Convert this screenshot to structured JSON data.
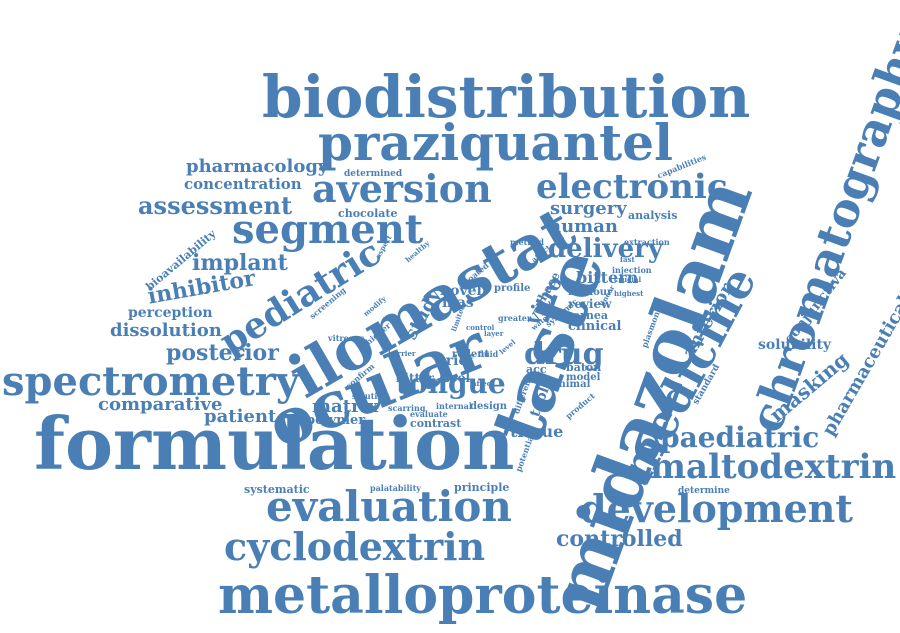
{
  "palette": {
    "text": "#4a7fb5",
    "background": "#ffffff"
  },
  "words": [
    "biodistribution",
    "praziquantel",
    "chromatography",
    "midazolam",
    "formulation",
    "metalloproteinase",
    "taste",
    "ilomastat",
    "ocular",
    "medicine",
    "segment",
    "aversion",
    "electronic",
    "pediatric",
    "spectrometry",
    "evaluation",
    "development",
    "cyclodextrin",
    "maltodextrin",
    "paediatric",
    "drug",
    "delivery",
    "tongue",
    "assessment",
    "posterior",
    "implant",
    "inhibitor",
    "comparative",
    "patient",
    "dissolution",
    "perception",
    "pharmacology",
    "concentration",
    "controlled",
    "masking",
    "pharmaceutical",
    "conjunctiva",
    "solubility",
    "anterior",
    "bittern",
    "surgery",
    "human",
    "matrix",
    "polymer",
    "tissue",
    "clinical",
    "review",
    "cornea",
    "analysis",
    "capabilities",
    "determined",
    "chocolate",
    "bioavailability",
    "systematic",
    "palatability",
    "principle",
    "determine",
    "contrast",
    "vitreous",
    "brief",
    "bitter",
    "novel",
    "mas",
    "study",
    "vitro",
    "table",
    "acc",
    "baton",
    "model",
    "design",
    "tool",
    "rodent",
    "profile",
    "screening",
    "greater",
    "standard",
    "injection",
    "extraction",
    "method",
    "evaluate",
    "internal",
    "scarring",
    "humour",
    "highest",
    "plasmon",
    "systemic",
    "potential",
    "different",
    "product",
    "animal",
    "solution",
    "crucial",
    "higher",
    "coated",
    "phase",
    "fluid",
    "affect",
    "confirm",
    "affect",
    "barrier",
    "control",
    "healthy",
    "aspect",
    "limited",
    "layer",
    "modify",
    "level",
    "water",
    "fast",
    "linear"
  ]
}
